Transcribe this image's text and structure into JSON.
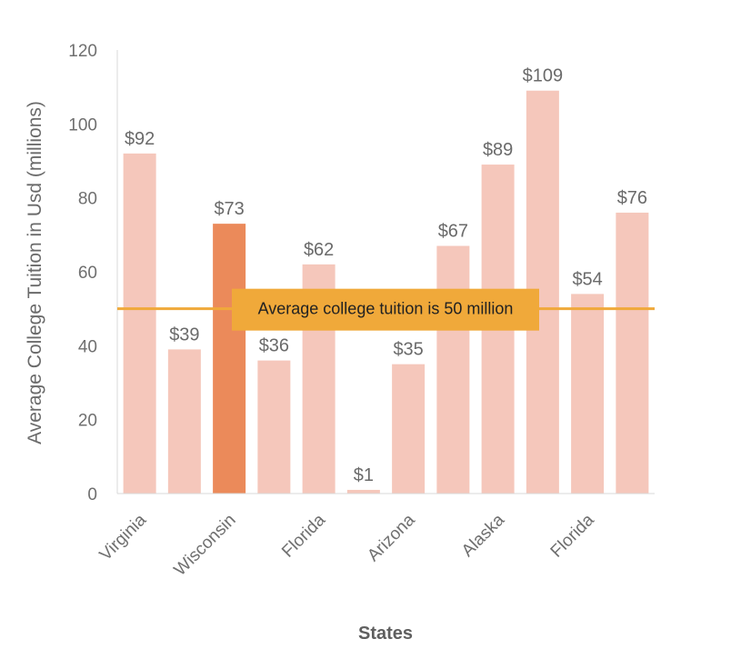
{
  "chart_data": {
    "type": "bar",
    "categories": [
      "Virginia",
      "",
      "Wisconsin",
      "",
      "Florida",
      "",
      "Arizona",
      "",
      "Alaska",
      "",
      "Florida",
      ""
    ],
    "values": [
      92,
      39,
      73,
      36,
      62,
      1,
      35,
      67,
      89,
      109,
      54,
      76
    ],
    "data_labels": [
      "$92",
      "$39",
      "$73",
      "$36",
      "$62",
      "$1",
      "$35",
      "$67",
      "$89",
      "$109",
      "$54",
      "$76"
    ],
    "highlight_index": 2,
    "xlabel": "States",
    "ylabel": "Average College Tuition in Usd (millions)",
    "ylim": [
      0,
      120
    ],
    "yticks": [
      0,
      20,
      40,
      60,
      80,
      100,
      120
    ],
    "reference_line": {
      "value": 50,
      "label": "Average college tuition is 50 million"
    },
    "grid": false,
    "legend": "none",
    "colors": {
      "bar": "#f5c7bb",
      "highlight": "#eb8a5a",
      "reference": "#f0a93a",
      "annotation_bg": "#f0a93a"
    }
  }
}
